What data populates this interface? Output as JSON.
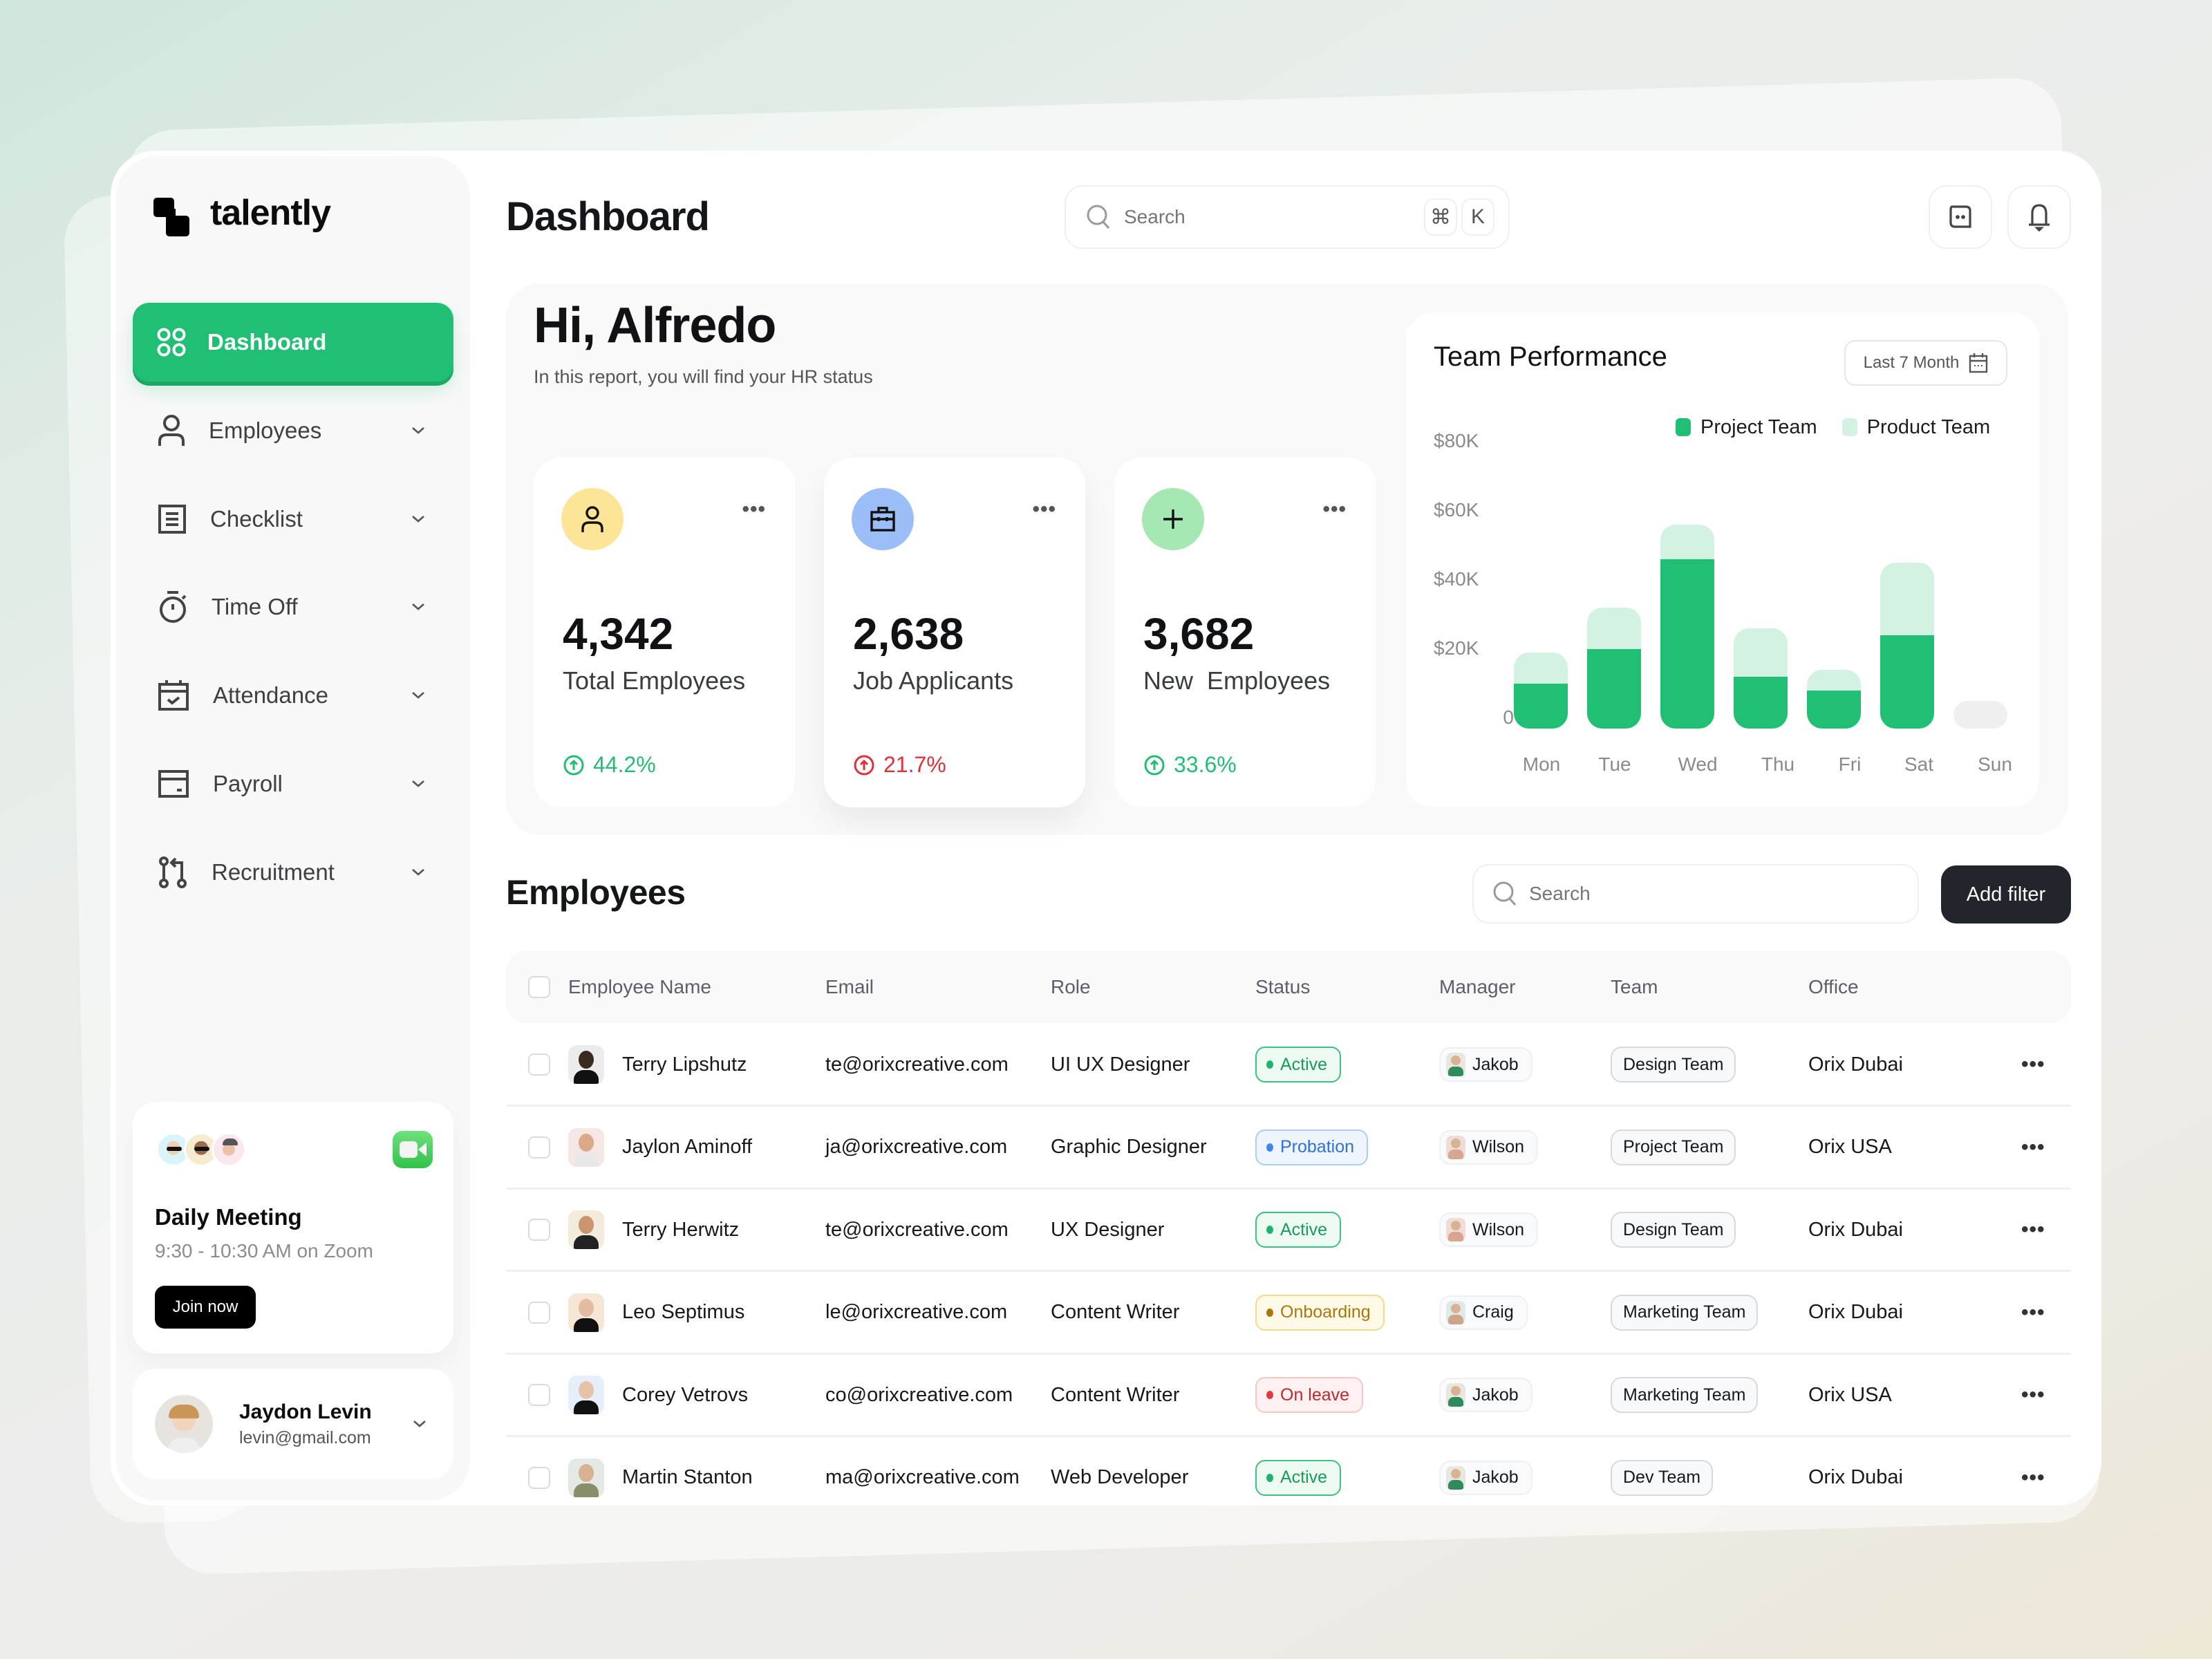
{
  "app": {
    "brand": "talently"
  },
  "sidebar": {
    "items": [
      {
        "label": "Dashboard",
        "icon": "grid-circles-icon",
        "active": true
      },
      {
        "label": "Employees",
        "icon": "user-icon"
      },
      {
        "label": "Checklist",
        "icon": "checklist-icon"
      },
      {
        "label": "Time Off",
        "icon": "stopwatch-icon"
      },
      {
        "label": "Attendance",
        "icon": "calendar-check-icon"
      },
      {
        "label": "Payroll",
        "icon": "card-icon"
      },
      {
        "label": "Recruitment",
        "icon": "git-pull-icon"
      }
    ],
    "meeting": {
      "title": "Daily Meeting",
      "time": "9:30 - 10:30 AM on Zoom",
      "join_label": "Join now"
    },
    "user": {
      "name": "Jaydon Levin",
      "email": "levin@gmail.com"
    }
  },
  "header": {
    "title": "Dashboard",
    "search_placeholder": "Search",
    "shortcut": [
      "⌘",
      "K"
    ]
  },
  "hero": {
    "greeting": "Hi, Alfredo",
    "subtitle": "In this report, you will find your HR status",
    "stats": [
      {
        "value": "4,342",
        "label": "Total Employees",
        "delta": "44.2%",
        "trend": "up",
        "delta_color": "#20bf73",
        "icon_bg": "#fde597",
        "icon": "user-icon"
      },
      {
        "value": "2,638",
        "label": "Job Applicants",
        "delta": "21.7%",
        "trend": "up",
        "delta_color": "#e0303a",
        "icon_bg": "#9bbdf8",
        "icon": "briefcase-icon"
      },
      {
        "value": "3,682",
        "label": "New  Employees",
        "delta": "33.6%",
        "trend": "up",
        "delta_color": "#20bf73",
        "icon_bg": "#a6e8b4",
        "icon": "plus-icon"
      }
    ],
    "more_label": "•••"
  },
  "chart_data": {
    "type": "bar",
    "stacked": true,
    "title": "Team Performance",
    "range_label": "Last 7 Month",
    "categories": [
      "Mon",
      "Tue",
      "Wed",
      "Thu",
      "Fri",
      "Sat",
      "Sun"
    ],
    "series": [
      {
        "name": "Project Team",
        "color": "#20bf73",
        "values": [
          13000,
          23000,
          49000,
          15000,
          11000,
          27000,
          0
        ]
      },
      {
        "name": "Product Team",
        "color": "#d3f2e1",
        "values": [
          9000,
          12000,
          10000,
          14000,
          6000,
          21000,
          0
        ]
      }
    ],
    "placeholder_empty": {
      "category": "Sun",
      "value": 8000,
      "color": "#efefef"
    },
    "yticks": [
      "$80K",
      "$60K",
      "$40K",
      "$20K",
      "0"
    ],
    "ylim": [
      0,
      80000
    ],
    "xlabel": "",
    "ylabel": "",
    "grid": false,
    "legend_position": "top-right"
  },
  "employees": {
    "title": "Employees",
    "search_placeholder": "Search",
    "add_filter_label": "Add filter",
    "columns": [
      "Employee Name",
      "Email",
      "Role",
      "Status",
      "Manager",
      "Team",
      "Office"
    ],
    "rows": [
      {
        "name": "Terry Lipshutz",
        "email": "te@orixcreative.com",
        "role": "UI UX Designer",
        "status": "Active",
        "manager": "Jakob",
        "team": "Design Team",
        "office": "Orix Dubai"
      },
      {
        "name": "Jaylon Aminoff",
        "email": "ja@orixcreative.com",
        "role": "Graphic Designer",
        "status": "Probation",
        "manager": "Wilson",
        "team": "Project Team",
        "office": "Orix USA"
      },
      {
        "name": "Terry Herwitz",
        "email": "te@orixcreative.com",
        "role": "UX Designer",
        "status": "Active",
        "manager": "Wilson",
        "team": "Design Team",
        "office": "Orix Dubai"
      },
      {
        "name": "Leo Septimus",
        "email": "le@orixcreative.com",
        "role": "Content Writer",
        "status": "Onboarding",
        "manager": "Craig",
        "team": "Marketing Team",
        "office": "Orix Dubai"
      },
      {
        "name": "Corey Vetrovs",
        "email": "co@orixcreative.com",
        "role": "Content Writer",
        "status": "On leave",
        "manager": "Jakob",
        "team": "Marketing Team",
        "office": "Orix USA"
      },
      {
        "name": "Martin Stanton",
        "email": "ma@orixcreative.com",
        "role": "Web Developer",
        "status": "Active",
        "manager": "Jakob",
        "team": "Dev Team",
        "office": "Orix Dubai"
      }
    ],
    "row_more_label": "•••",
    "status_colors": {
      "Active": {
        "text": "#1a9a5c",
        "bg": "#ecfaf2",
        "border": "#3cc27f",
        "dot": "#1fb36b"
      },
      "Probation": {
        "text": "#2f6fe0",
        "bg": "#eef5ff",
        "border": "#a9cdf7",
        "dot": "#3f86f0"
      },
      "Onboarding": {
        "text": "#a9770c",
        "bg": "#fff9e8",
        "border": "#f6d98a",
        "dot": "#a9770c"
      },
      "On leave": {
        "text": "#c0282c",
        "bg": "#fff1f1",
        "border": "#f7c7c7",
        "dot": "#e5393e"
      }
    }
  },
  "colors": {
    "accent": "#20bf73",
    "accent_light": "#d3f2e1",
    "dark": "#22252b"
  }
}
